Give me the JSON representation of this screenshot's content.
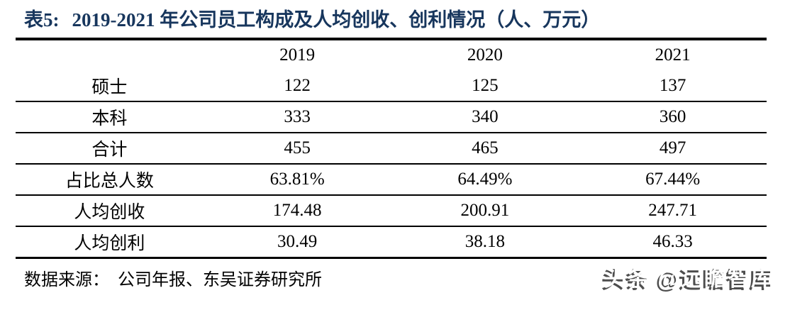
{
  "title": {
    "prefix": "表5:",
    "text": "2019-2021 年公司员工构成及人均创收、创利情况（人、万元）",
    "color": "#17365D"
  },
  "table": {
    "columns": [
      "",
      "2019",
      "2020",
      "2021"
    ],
    "rows": [
      {
        "label": "硕士",
        "values": [
          "122",
          "125",
          "137"
        ]
      },
      {
        "label": "本科",
        "values": [
          "333",
          "340",
          "360"
        ]
      },
      {
        "label": "合计",
        "values": [
          "455",
          "465",
          "497"
        ]
      },
      {
        "label": "占比总人数",
        "values": [
          "63.81%",
          "64.49%",
          "67.44%"
        ]
      },
      {
        "label": "人均创收",
        "values": [
          "174.48",
          "200.91",
          "247.71"
        ]
      },
      {
        "label": "人均创利",
        "values": [
          "30.49",
          "38.18",
          "46.33"
        ]
      }
    ],
    "border_color": "#000000"
  },
  "footer": {
    "source_label": "数据来源：",
    "source_text": "公司年报、东吴证券研究所"
  },
  "watermark": {
    "text": "头条 @远瞻智库",
    "fill": "#ffffff",
    "shadow": "#4d4d4d"
  }
}
